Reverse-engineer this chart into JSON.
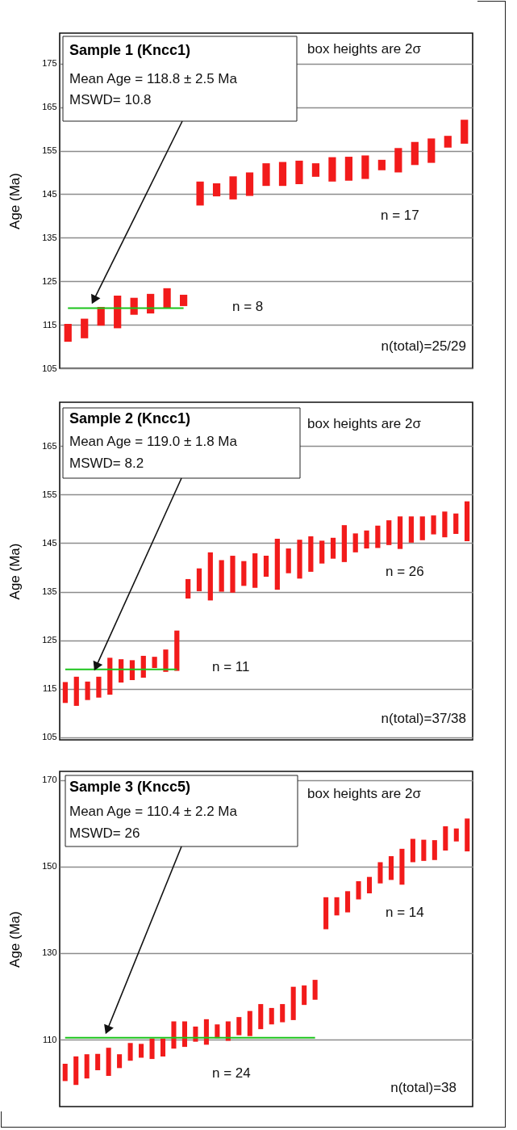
{
  "chart_data": [
    {
      "type": "bar",
      "title": "Sample 1 (Kncc1)",
      "ylabel": "Age (Ma)",
      "categories": [
        null,
        null,
        null,
        null,
        null,
        null,
        null,
        null,
        null,
        null,
        null,
        null,
        null,
        null,
        null,
        null,
        null,
        null,
        null,
        null,
        null,
        null,
        null,
        null,
        null
      ],
      "ylim": [
        105,
        182
      ],
      "yticks": [
        105,
        115,
        125,
        135,
        145,
        155,
        165,
        175
      ],
      "grid": "y",
      "tick_labels": "y",
      "annotations": [
        "Mean Age = 118.8 ± 2.5 Ma",
        "MSWD= 10.8",
        "box heights are 2σ",
        "n = 8",
        "n = 17",
        "n(total)=25/29"
      ],
      "series": [
        {
          "color": "#f21b1b",
          "base": [
            111.1,
            111.9,
            114.8,
            114.2,
            117.3,
            117.6,
            118.9,
            119.3,
            null,
            null,
            null,
            null,
            null,
            null,
            null,
            null,
            null,
            null,
            null,
            null,
            null,
            null,
            null,
            null,
            null
          ],
          "values": [
            4.1,
            4.5,
            4.3,
            7.5,
            3.9,
            4.5,
            4.5,
            2.6,
            null,
            null,
            null,
            null,
            null,
            null,
            null,
            null,
            null,
            null,
            null,
            null,
            null,
            null,
            null,
            null,
            null
          ]
        },
        {
          "color": "#f21b1b",
          "base": [
            null,
            null,
            null,
            null,
            null,
            null,
            null,
            null,
            142.4,
            144.5,
            143.8,
            144.6,
            146.9,
            146.9,
            147.3,
            149.0,
            147.9,
            148.1,
            148.5,
            150.5,
            150.0,
            151.7,
            152.2,
            155.7,
            156.6
          ],
          "values": [
            null,
            null,
            null,
            null,
            null,
            null,
            null,
            null,
            5.5,
            3.0,
            5.3,
            5.4,
            5.2,
            5.5,
            5.4,
            3.1,
            5.6,
            5.5,
            5.4,
            2.4,
            5.6,
            5.3,
            5.6,
            2.7,
            5.5
          ]
        },
        {
          "type": "line",
          "color": "#1cc41c",
          "values": [
            118.8,
            118.8,
            118.8,
            118.8,
            118.8,
            118.8,
            118.8,
            118.8,
            null,
            null,
            null,
            null,
            null,
            null,
            null,
            null,
            null,
            null,
            null,
            null,
            null,
            null,
            null,
            null,
            null
          ]
        }
      ]
    },
    {
      "type": "bar",
      "title": "Sample 2 (Kncc1)",
      "ylabel": "Age (Ma)",
      "categories": [
        null,
        null,
        null,
        null,
        null,
        null,
        null,
        null,
        null,
        null,
        null,
        null,
        null,
        null,
        null,
        null,
        null,
        null,
        null,
        null,
        null,
        null,
        null,
        null,
        null,
        null,
        null,
        null,
        null,
        null,
        null,
        null,
        null,
        null,
        null,
        null,
        null
      ],
      "ylim": [
        104.5,
        174
      ],
      "yticks": [
        105,
        115,
        125,
        135,
        145,
        155,
        165
      ],
      "grid": "y",
      "tick_labels": "y",
      "annotations": [
        "Mean Age = 119.0 ± 1.8 Ma",
        "MSWD= 8.2",
        "box heights are 2σ",
        "n = 11",
        "n = 26",
        "n(total)=37/38"
      ],
      "series": [
        {
          "color": "#f21b1b",
          "base": [
            112.1,
            111.5,
            112.7,
            113.2,
            113.8,
            116.3,
            116.8,
            117.3,
            119.3,
            118.5,
            118.7,
            null,
            null,
            null,
            null,
            null,
            null,
            null,
            null,
            null,
            null,
            null,
            null,
            null,
            null,
            null,
            null,
            null,
            null,
            null,
            null,
            null,
            null,
            null,
            null,
            null,
            null
          ],
          "values": [
            4.3,
            6.0,
            3.8,
            4.3,
            7.6,
            4.8,
            4.1,
            4.5,
            2.3,
            4.6,
            8.3,
            null,
            null,
            null,
            null,
            null,
            null,
            null,
            null,
            null,
            null,
            null,
            null,
            null,
            null,
            null,
            null,
            null,
            null,
            null,
            null,
            null,
            null,
            null,
            null,
            null,
            null
          ]
        },
        {
          "color": "#f21b1b",
          "base": [
            null,
            null,
            null,
            null,
            null,
            null,
            null,
            null,
            null,
            null,
            null,
            133.6,
            135.1,
            133.2,
            135.0,
            134.8,
            136.2,
            135.8,
            138.1,
            135.4,
            138.8,
            137.7,
            139.1,
            140.8,
            141.8,
            141.1,
            143.1,
            143.9,
            144.0,
            144.6,
            143.8,
            145.1,
            145.6,
            146.8,
            146.2,
            146.9,
            145.4
          ],
          "values": [
            null,
            null,
            null,
            null,
            null,
            null,
            null,
            null,
            null,
            null,
            null,
            4.0,
            4.7,
            9.9,
            6.5,
            7.6,
            5.1,
            7.1,
            4.3,
            10.5,
            5.1,
            8.0,
            7.3,
            4.7,
            4.3,
            7.6,
            3.9,
            3.7,
            4.6,
            5.1,
            6.7,
            5.4,
            4.9,
            3.9,
            5.3,
            4.2,
            8.2
          ]
        },
        {
          "type": "line",
          "color": "#1cc41c",
          "values": [
            119.0,
            119.0,
            119.0,
            119.0,
            119.0,
            119.0,
            119.0,
            119.0,
            119.0,
            119.0,
            119.0,
            null,
            null,
            null,
            null,
            null,
            null,
            null,
            null,
            null,
            null,
            null,
            null,
            null,
            null,
            null,
            null,
            null,
            null,
            null,
            null,
            null,
            null,
            null,
            null,
            null,
            null
          ]
        }
      ]
    },
    {
      "type": "bar",
      "title": "Sample 3 (Kncc5)",
      "ylabel": "Age (Ma)",
      "categories": [
        null,
        null,
        null,
        null,
        null,
        null,
        null,
        null,
        null,
        null,
        null,
        null,
        null,
        null,
        null,
        null,
        null,
        null,
        null,
        null,
        null,
        null,
        null,
        null,
        null,
        null,
        null,
        null,
        null,
        null,
        null,
        null,
        null,
        null,
        null,
        null,
        null,
        null
      ],
      "ylim": [
        94.5,
        172
      ],
      "yticks": [
        110,
        130,
        150,
        170
      ],
      "grid": "y",
      "tick_labels": "y",
      "annotations": [
        "Mean Age = 110.4 ± 2.2 Ma",
        "MSWD= 26",
        "box heights are 2σ",
        "n = 24",
        "n = 14",
        "n(total)=38"
      ],
      "series": [
        {
          "color": "#f21b1b",
          "base": [
            100.4,
            99.5,
            101.0,
            102.9,
            101.6,
            103.4,
            105.1,
            105.8,
            105.5,
            106.1,
            107.9,
            108.3,
            109.5,
            108.8,
            110.3,
            109.7,
            111.0,
            110.8,
            112.4,
            113.5,
            114.0,
            114.5,
            118.0,
            119.2,
            null,
            null,
            null,
            null,
            null,
            null,
            null,
            null,
            null,
            null,
            null,
            null,
            null,
            null
          ],
          "values": [
            4.0,
            6.6,
            5.6,
            3.8,
            6.5,
            3.2,
            4.1,
            3.2,
            4.7,
            4.1,
            6.3,
            5.9,
            3.5,
            5.9,
            3.2,
            4.5,
            4.2,
            5.8,
            5.8,
            3.8,
            4.2,
            7.7,
            4.5,
            4.6,
            null,
            null,
            null,
            null,
            null,
            null,
            null,
            null,
            null,
            null,
            null,
            null,
            null,
            null
          ]
        },
        {
          "color": "#f21b1b",
          "base": [
            null,
            null,
            null,
            null,
            null,
            null,
            null,
            null,
            null,
            null,
            null,
            null,
            null,
            null,
            null,
            null,
            null,
            null,
            null,
            null,
            null,
            null,
            null,
            null,
            135.5,
            138.7,
            139.4,
            142.4,
            143.8,
            146.1,
            146.9,
            145.8,
            151.0,
            151.3,
            151.5,
            153.7,
            155.8,
            153.5
          ],
          "values": [
            null,
            null,
            null,
            null,
            null,
            null,
            null,
            null,
            null,
            null,
            null,
            null,
            null,
            null,
            null,
            null,
            null,
            null,
            null,
            null,
            null,
            null,
            null,
            null,
            7.4,
            4.2,
            4.9,
            4.2,
            3.8,
            4.9,
            5.5,
            8.3,
            5.4,
            4.9,
            4.6,
            5.6,
            3.0,
            7.6
          ]
        },
        {
          "type": "line",
          "color": "#1cc41c",
          "values": [
            110.4,
            110.4,
            110.4,
            110.4,
            110.4,
            110.4,
            110.4,
            110.4,
            110.4,
            110.4,
            110.4,
            110.4,
            110.4,
            110.4,
            110.4,
            110.4,
            110.4,
            110.4,
            110.4,
            110.4,
            110.4,
            110.4,
            110.4,
            110.4,
            null,
            null,
            null,
            null,
            null,
            null,
            null,
            null,
            null,
            null,
            null,
            null,
            null,
            null
          ]
        }
      ]
    }
  ]
}
